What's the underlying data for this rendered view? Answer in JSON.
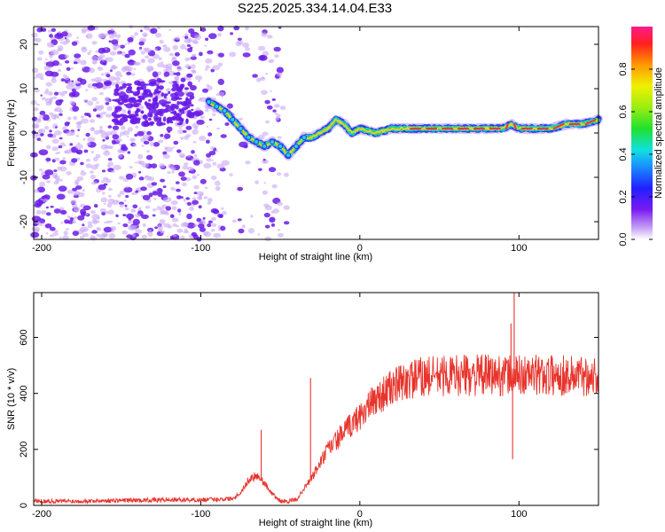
{
  "title": "S225.2025.334.14.04.E33",
  "colors": {
    "series": "#e8342c",
    "ridge_core": "#e23a4a",
    "ridge_mid": "#2fd36b",
    "ridge_outer": "#2b3cf0",
    "scatter_dark": "#6a1be8",
    "scatter_light": "#c9a8f5"
  },
  "chart_data": [
    {
      "type": "heatmap",
      "title": "S225.2025.334.14.04.E33",
      "xlabel": "Height of straight line (km)",
      "ylabel": "Frequency (Hz)",
      "xlim": [
        -205,
        150
      ],
      "ylim": [
        -24,
        24
      ],
      "x_ticks": [
        -200,
        -100,
        0,
        100
      ],
      "y_ticks": [
        -20,
        -10,
        0,
        10,
        20
      ],
      "colorbar": {
        "label": "Normalized spectral amplitude",
        "range": [
          0,
          1
        ],
        "ticks": [
          "0.0",
          "0.2",
          "0.4",
          "0.6",
          "0.8"
        ],
        "colormap": "rainbow"
      },
      "ridge": {
        "x": [
          -95,
          -90,
          -85,
          -80,
          -75,
          -70,
          -65,
          -60,
          -55,
          -50,
          -45,
          -40,
          -35,
          -30,
          -25,
          -20,
          -15,
          -10,
          -5,
          0,
          10,
          20,
          30,
          40,
          50,
          60,
          70,
          80,
          90,
          95,
          100,
          110,
          120,
          130,
          140,
          150
        ],
        "freq": [
          7,
          6,
          5,
          3,
          1,
          -1,
          -2,
          -3,
          -2,
          -3,
          -5,
          -3,
          -1,
          -1,
          0,
          1,
          3,
          2,
          0,
          1,
          0,
          1,
          1,
          1,
          1,
          1,
          1,
          1,
          1,
          2,
          1,
          1,
          1,
          2,
          2,
          3
        ],
        "amplitude": [
          0.3,
          0.35,
          0.25,
          0.3,
          0.35,
          0.3,
          0.3,
          0.25,
          0.35,
          0.3,
          0.4,
          0.5,
          0.5,
          0.55,
          0.55,
          0.6,
          0.6,
          0.5,
          0.55,
          0.7,
          0.75,
          0.7,
          0.8,
          0.9,
          0.85,
          0.85,
          0.85,
          0.9,
          0.9,
          0.8,
          0.9,
          0.9,
          0.85,
          0.9,
          0.85,
          0.9
        ]
      }
    },
    {
      "type": "line",
      "xlabel": "Height of straight line (km)",
      "ylabel": "SNR (10 * v/v)",
      "xlim": [
        -205,
        150
      ],
      "ylim": [
        0,
        760
      ],
      "x_ticks": [
        -200,
        -100,
        0,
        100
      ],
      "y_ticks": [
        0,
        200,
        400,
        600
      ],
      "envelope": {
        "x": [
          -205,
          -180,
          -150,
          -120,
          -100,
          -90,
          -80,
          -75,
          -70,
          -65,
          -60,
          -55,
          -50,
          -45,
          -40,
          -35,
          -30,
          -25,
          -20,
          -15,
          -10,
          -5,
          0,
          10,
          20,
          30,
          40,
          60,
          80,
          100,
          120,
          150
        ],
        "y": [
          15,
          15,
          18,
          20,
          20,
          22,
          25,
          45,
          90,
          110,
          80,
          40,
          15,
          15,
          20,
          60,
          100,
          150,
          200,
          230,
          260,
          290,
          320,
          380,
          420,
          445,
          460,
          465,
          465,
          465,
          465,
          465
        ]
      },
      "spikes": [
        {
          "x": -62,
          "y": 270
        },
        {
          "x": -31,
          "y": 455
        },
        {
          "x": 95,
          "y": 650
        },
        {
          "x": 97,
          "y": 760
        },
        {
          "x": 96,
          "y": 165
        }
      ]
    }
  ]
}
